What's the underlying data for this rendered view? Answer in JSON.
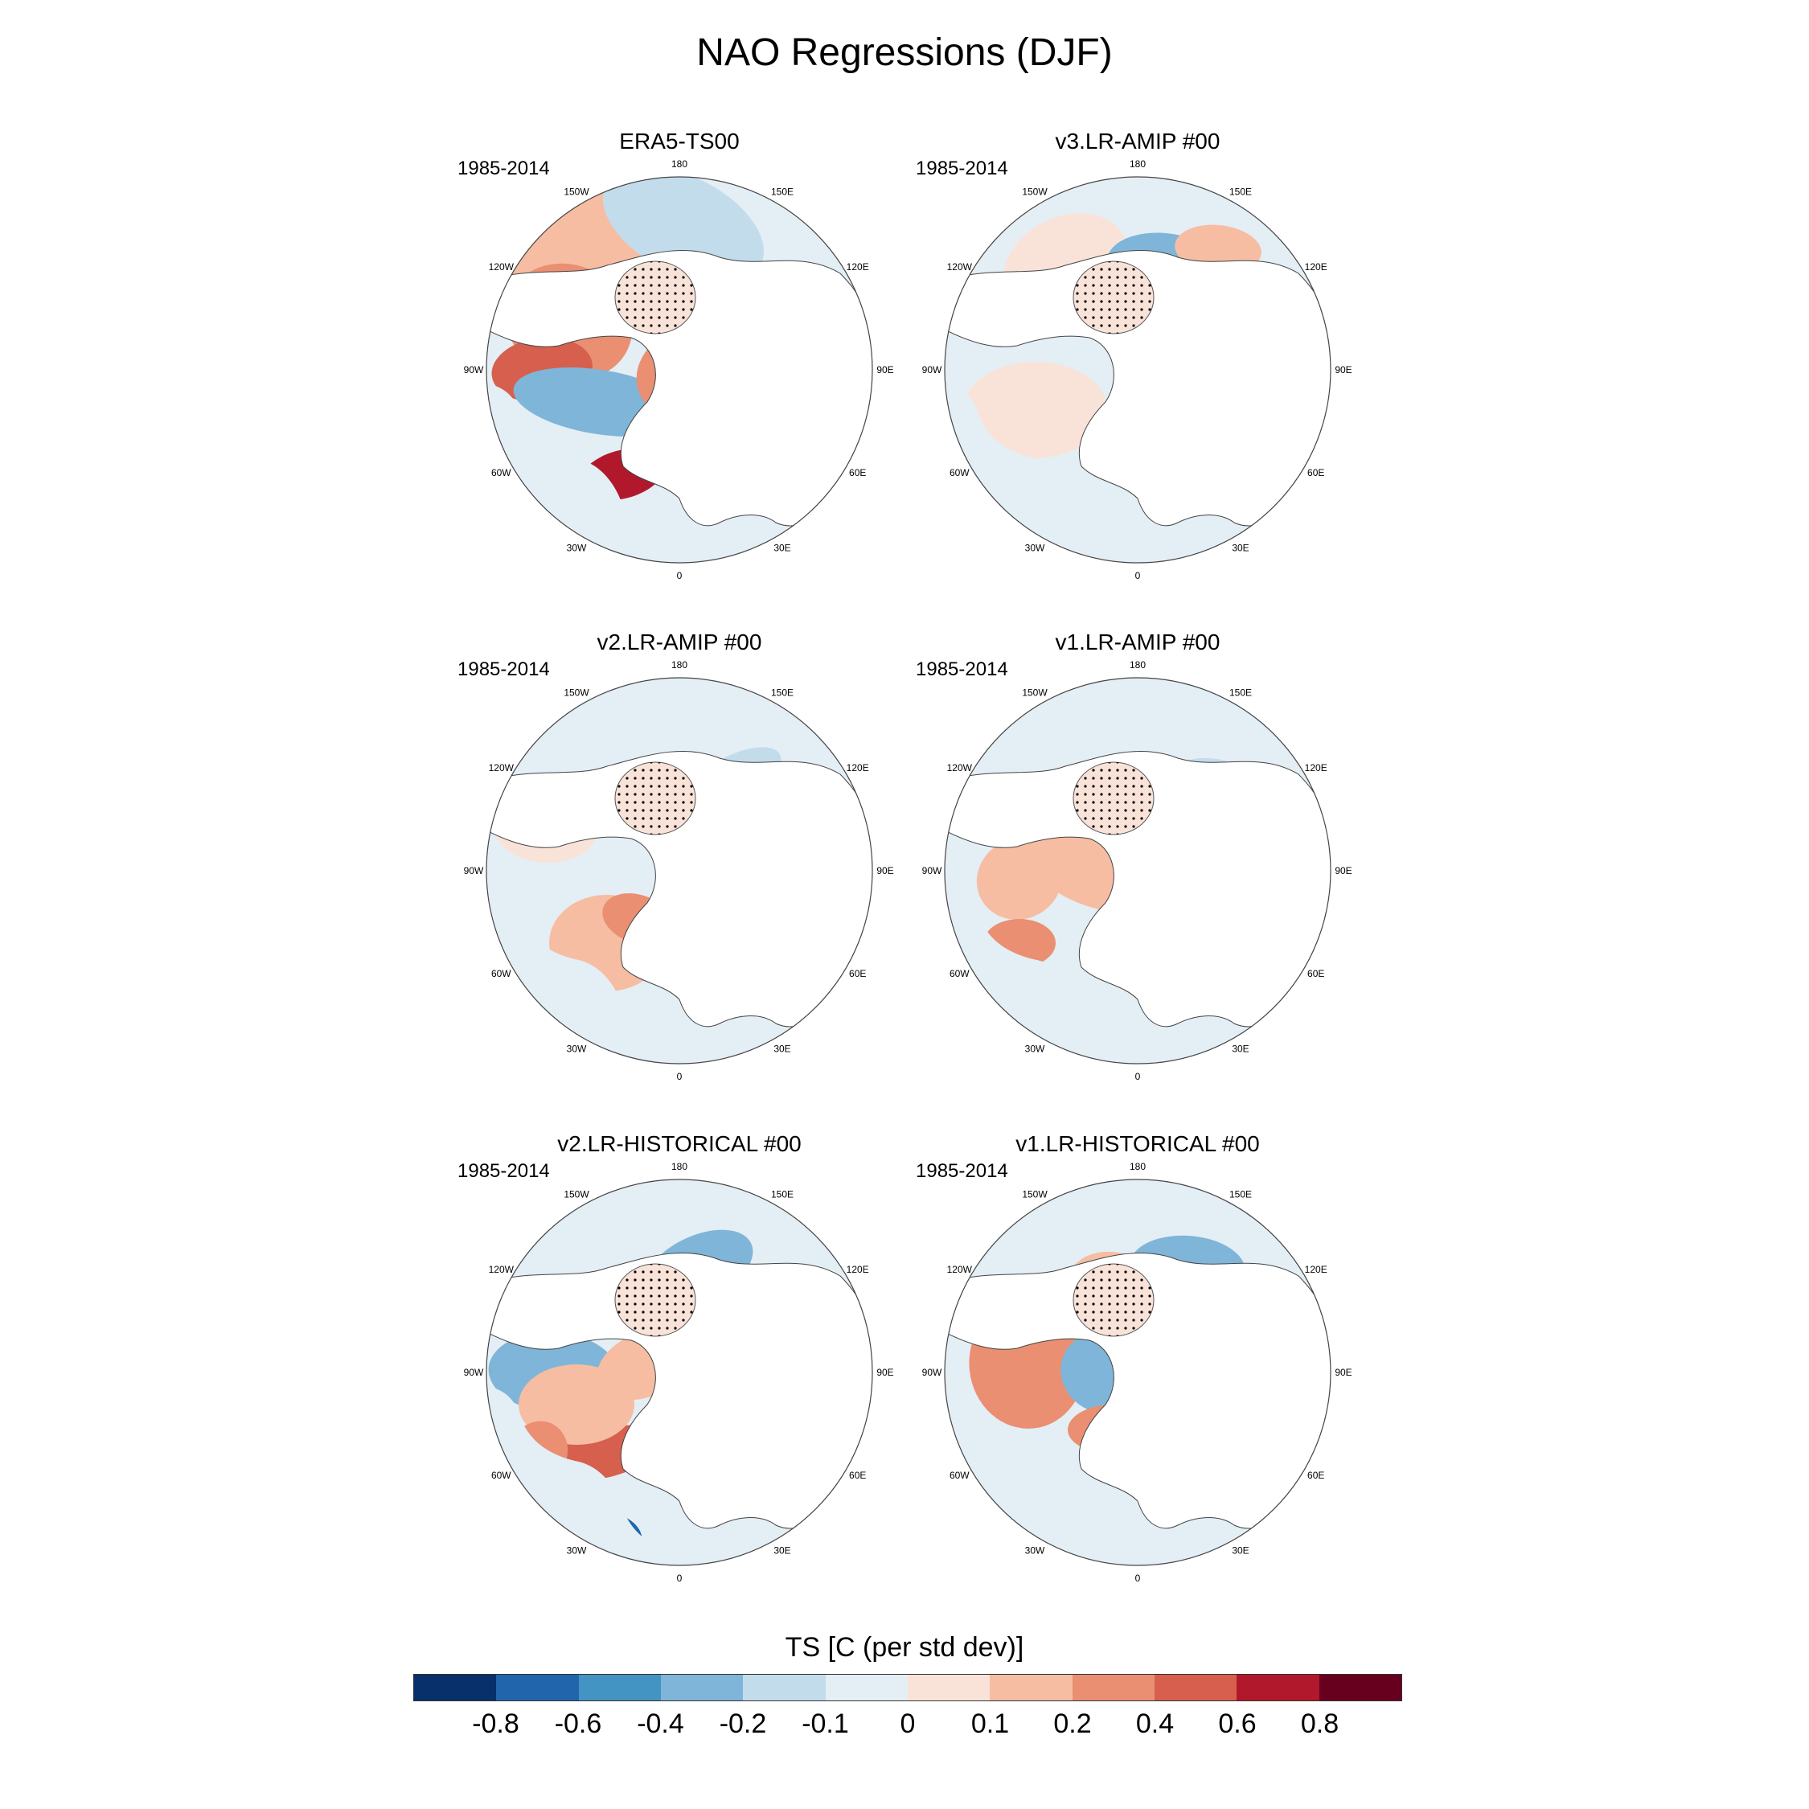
{
  "figure": {
    "title": "NAO Regressions (DJF)"
  },
  "panels": [
    {
      "title": "ERA5-TS00",
      "period": "1985-2014"
    },
    {
      "title": "v3.LR-AMIP  #00",
      "period": "1985-2014"
    },
    {
      "title": "v2.LR-AMIP  #00",
      "period": "1985-2014"
    },
    {
      "title": "v1.LR-AMIP  #00",
      "period": "1985-2014"
    },
    {
      "title": "v2.LR-HISTORICAL  #00",
      "period": "1985-2014"
    },
    {
      "title": "v1.LR-HISTORICAL  #00",
      "period": "1985-2014"
    }
  ],
  "lon_labels": [
    "180",
    "150E",
    "120E",
    "90E",
    "60E",
    "30E",
    "0",
    "30W",
    "60W",
    "90W",
    "120W",
    "150W"
  ],
  "colorbar": {
    "title": "TS [C (per std dev)]",
    "tick_labels": [
      "-0.8",
      "-0.6",
      "-0.4",
      "-0.2",
      "-0.1",
      "0",
      "0.1",
      "0.2",
      "0.4",
      "0.6",
      "0.8"
    ],
    "colors": [
      "#08306b",
      "#2166ac",
      "#4393c3",
      "#7fb5d8",
      "#c3dcec",
      "#e4eef5",
      "#f9e3d9",
      "#f6bda3",
      "#ea8f72",
      "#d6604d",
      "#b2182b",
      "#67001f"
    ]
  }
}
